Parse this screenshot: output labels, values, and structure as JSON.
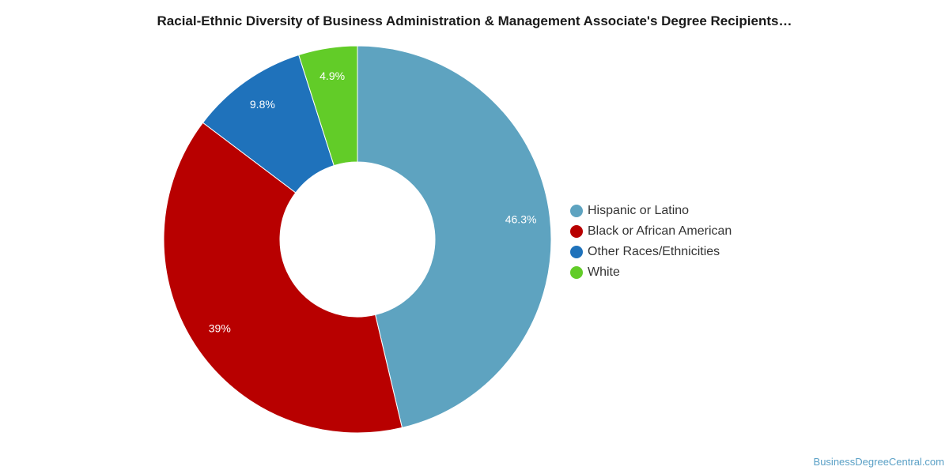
{
  "chart_data": {
    "type": "pie",
    "title": "Racial-Ethnic Diversity of Business Administration & Management Associate's Degree Recipients…",
    "donut": true,
    "legend_position": "right",
    "start_angle": "top",
    "direction": "clockwise",
    "slices": [
      {
        "label": "Hispanic or Latino",
        "value": 46.3,
        "value_label": "46.3%",
        "color": "#5ea3c0"
      },
      {
        "label": "Black or African American",
        "value": 39,
        "value_label": "39%",
        "color": "#b80000"
      },
      {
        "label": "Other Races/Ethnicities",
        "value": 9.8,
        "value_label": "9.8%",
        "color": "#1f72bb"
      },
      {
        "label": "White",
        "value": 4.9,
        "value_label": "4.9%",
        "color": "#62cc28"
      }
    ]
  },
  "watermark": "BusinessDegreeCentral.com"
}
